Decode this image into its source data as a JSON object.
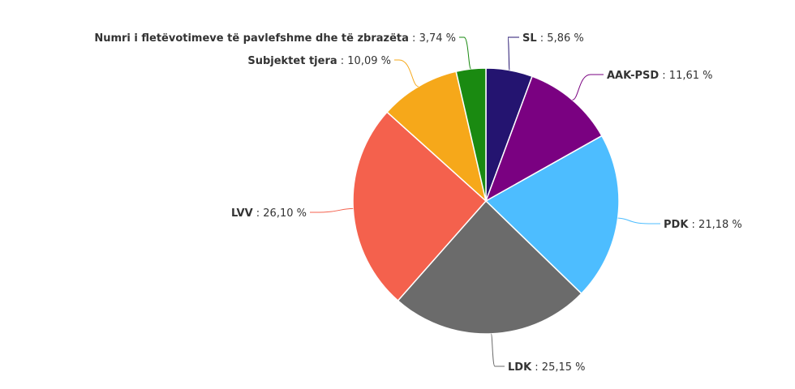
{
  "chart_data": {
    "type": "pie",
    "title": "",
    "label_separator": " : ",
    "value_suffix": " %",
    "slices": [
      {
        "name": "SL",
        "value": 5.86,
        "display": "5,86",
        "color": "#241470"
      },
      {
        "name": "AAK-PSD",
        "value": 11.61,
        "display": "11,61",
        "color": "#7a0181"
      },
      {
        "name": "PDK",
        "value": 21.18,
        "display": "21,18",
        "color": "#4dbdff"
      },
      {
        "name": "LDK",
        "value": 25.15,
        "display": "25,15",
        "color": "#6b6b6b"
      },
      {
        "name": "LVV",
        "value": 26.1,
        "display": "26,10",
        "color": "#f4614d"
      },
      {
        "name": "Subjektet tjera",
        "value": 10.09,
        "display": "10,09",
        "color": "#f6a81a"
      },
      {
        "name": "Numri i fletëvotimeve të pavlefshme dhe të zbrazëta",
        "value": 3.74,
        "display": "3,74",
        "color": "#1a8a11"
      }
    ]
  }
}
